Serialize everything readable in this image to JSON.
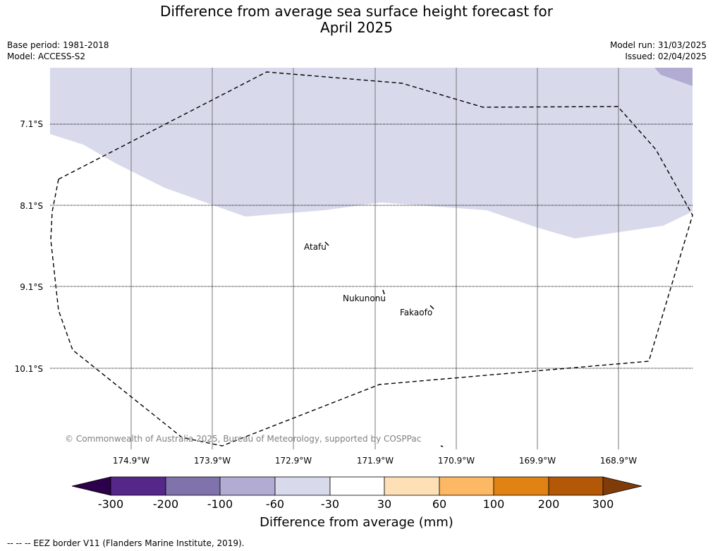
{
  "title_line1": "Difference from average sea surface height forecast for",
  "title_line2": "April 2025",
  "base_period": "Base period: 1981-2018",
  "model": "Model: ACCESS-S2",
  "model_run": "Model run: 31/03/2025",
  "issued": "Issued: 02/04/2025",
  "lat_labels": [
    "7.1°S",
    "8.1°S",
    "9.1°S",
    "10.1°S"
  ],
  "lon_labels": [
    "174.9°W",
    "173.9°W",
    "172.9°W",
    "171.9°W",
    "170.9°W",
    "169.9°W",
    "168.9°W"
  ],
  "places": [
    "Atafu",
    "Nukunonu",
    "Fakaofo"
  ],
  "copyright": "© Commonwealth of Australia 2025, Bureau of Meteorology, supported by COSPPac",
  "colorbar": {
    "label": "Difference from average (mm)",
    "ticks": [
      "-300",
      "-200",
      "-100",
      "-60",
      "-30",
      "30",
      "60",
      "100",
      "200",
      "300"
    ],
    "colors": [
      "#2d004b",
      "#542788",
      "#8073ac",
      "#b2abd2",
      "#d8daeb",
      "#ffffff",
      "#fee0b6",
      "#fdb863",
      "#e08214",
      "#b35806",
      "#7f3b08"
    ]
  },
  "footnote": "-- -- -- EEZ border V11 (Flanders Marine Institute, 2019)."
}
